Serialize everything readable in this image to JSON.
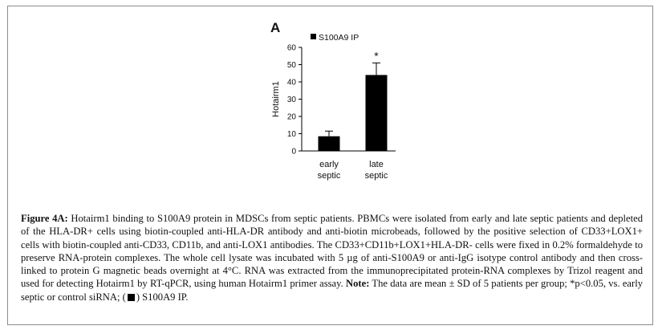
{
  "chart_data": {
    "type": "bar",
    "panel_label": "A",
    "legend": {
      "label": "S100A9 IP",
      "color": "#000000",
      "placement": "top-left"
    },
    "ylabel": "Hotairm1",
    "xlabel": "",
    "ylim": [
      0,
      60
    ],
    "yticks": [
      0,
      10,
      20,
      30,
      40,
      50,
      60
    ],
    "categories": [
      [
        "early",
        "septic"
      ],
      [
        "late",
        "septic"
      ]
    ],
    "series": [
      {
        "name": "S100A9 IP",
        "values": [
          8.5,
          44
        ],
        "errors": [
          3,
          7
        ],
        "color": "#000000"
      }
    ],
    "annotations": [
      {
        "category_index": 1,
        "text": "*"
      }
    ],
    "grid": false
  },
  "caption": {
    "figure_label": "Figure 4A:",
    "body": "Hotairm1 binding to S100A9 protein in MDSCs from septic patients. PBMCs were isolated from early and late septic patients and depleted of the HLA-DR+ cells using biotin-coupled anti-HLA-DR antibody and anti-biotin microbeads, followed by the positive selection of CD33+LOX1+ cells with biotin-coupled anti-CD33, CD11b, and anti-LOX1 antibodies. The CD33+CD11b+LOX1+HLA-DR- cells were fixed in 0.2% formaldehyde to preserve RNA-protein complexes. The whole cell lysate was incubated with 5 µg of anti-S100A9 or anti-IgG isotype control antibody and then cross-linked to protein G magnetic beads overnight at 4°C. RNA was extracted from the immunoprecipitated protein-RNA complexes by Trizol reagent and used for detecting Hotairm1 by RT-qPCR, using human Hotairm1 primer assay.",
    "note_label": "Note:",
    "note_body": "The data are mean ± SD of 5 patients per group; *p<0.05, vs. early septic or control siRNA; (",
    "note_tail": ") S100A9 IP."
  }
}
